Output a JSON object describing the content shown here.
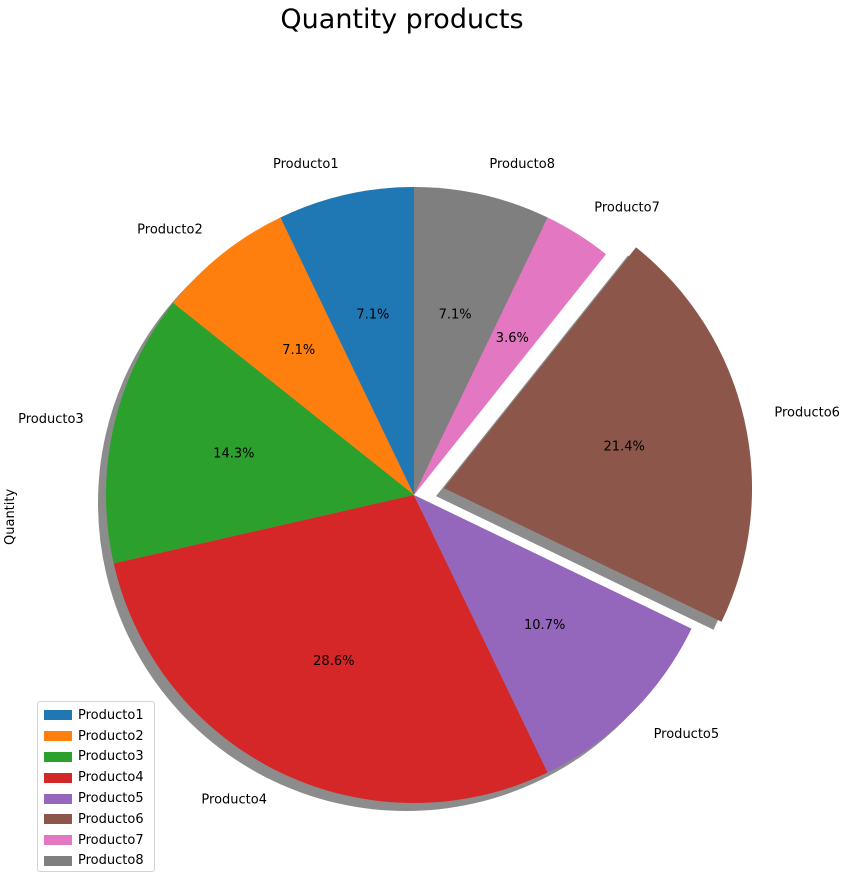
{
  "chart_data": {
    "type": "pie",
    "title": "Quantity products",
    "ylabel": "Quantity",
    "categories": [
      "Producto1",
      "Producto2",
      "Producto3",
      "Producto4",
      "Producto5",
      "Producto6",
      "Producto7",
      "Producto8"
    ],
    "values": [
      2,
      2,
      4,
      8,
      3,
      6,
      1,
      2
    ],
    "percent_labels": [
      "7.1%",
      "7.1%",
      "14.3%",
      "28.6%",
      "10.7%",
      "21.4%",
      "3.6%",
      "7.1%"
    ],
    "colors": [
      "#1f77b4",
      "#ff7f0e",
      "#2ca02c",
      "#d62728",
      "#9467bd",
      "#8c564b",
      "#e377c2",
      "#7f7f7f"
    ],
    "explode": [
      0,
      0,
      0,
      0,
      0,
      0.1,
      0,
      0
    ],
    "start_angle": 90,
    "direction": "counterclockwise",
    "shadow": true,
    "legend_position": "bottom-left"
  }
}
